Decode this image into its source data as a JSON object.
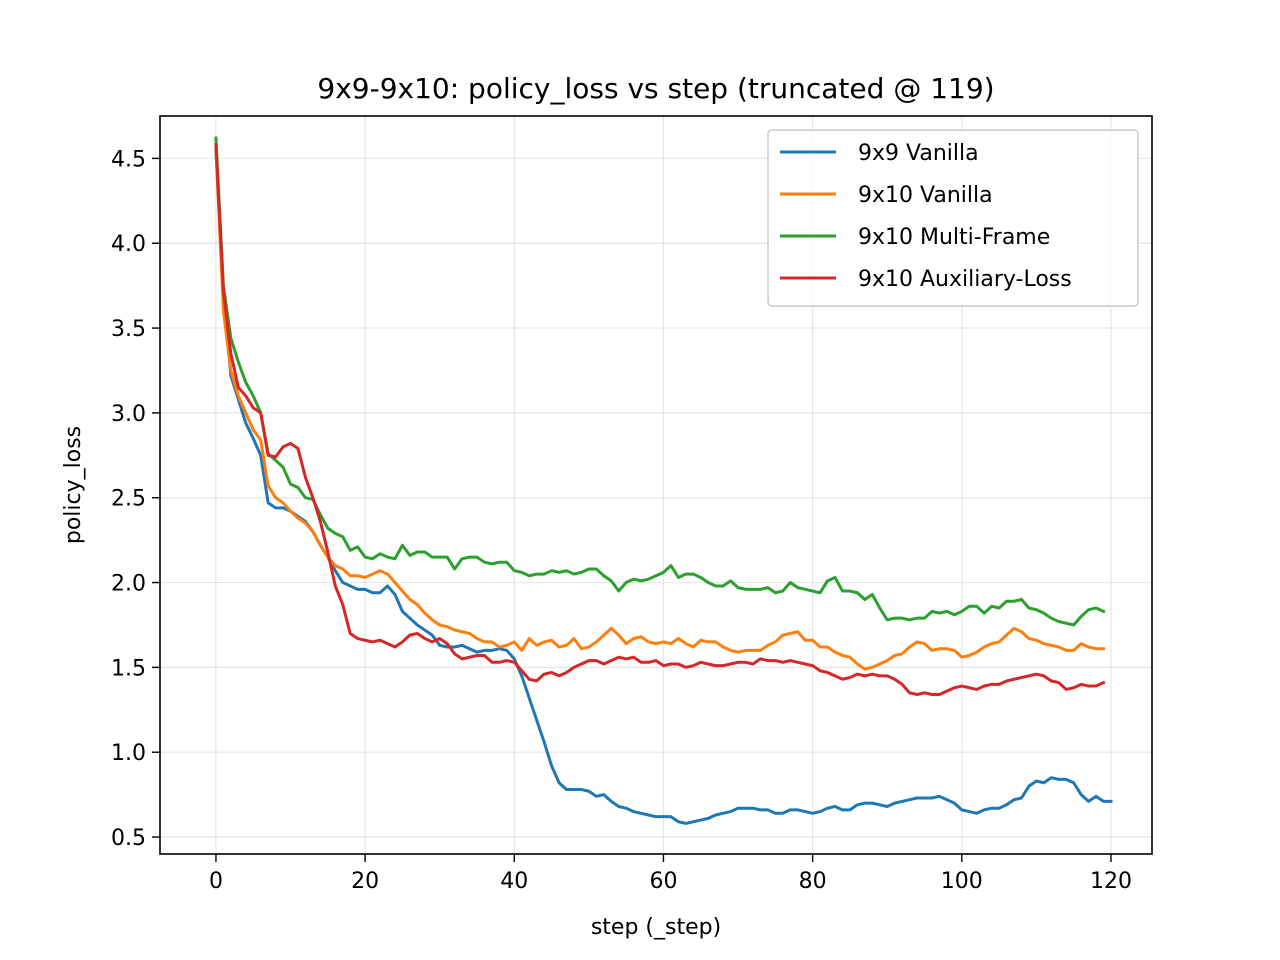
{
  "chart_data": {
    "type": "line",
    "title": "9x9-9x10: policy_loss vs step (truncated @ 119)",
    "xlabel": "step (_step)",
    "ylabel": "policy_loss",
    "xlim": [
      -7.5,
      125.5
    ],
    "ylim": [
      0.4,
      4.75
    ],
    "xticks": [
      0,
      20,
      40,
      60,
      80,
      100,
      120
    ],
    "yticks": [
      0.5,
      1.0,
      1.5,
      2.0,
      2.5,
      3.0,
      3.5,
      4.0,
      4.5
    ],
    "ytick_labels": [
      "0.5",
      "1.0",
      "1.5",
      "2.0",
      "2.5",
      "3.0",
      "3.5",
      "4.0",
      "4.5"
    ],
    "grid": true,
    "legend_position": "top-right",
    "series": [
      {
        "name": "9x9 Vanilla",
        "color": "#1f77b4",
        "values": [
          4.55,
          3.7,
          3.22,
          3.08,
          2.94,
          2.85,
          2.75,
          2.47,
          2.44,
          2.44,
          2.42,
          2.39,
          2.36,
          2.3,
          2.22,
          2.15,
          2.07,
          2.0,
          1.98,
          1.96,
          1.96,
          1.94,
          1.94,
          1.98,
          1.93,
          1.83,
          1.79,
          1.75,
          1.72,
          1.69,
          1.63,
          1.62,
          1.62,
          1.63,
          1.61,
          1.59,
          1.6,
          1.6,
          1.61,
          1.6,
          1.55,
          1.45,
          1.32,
          1.19,
          1.06,
          0.92,
          0.82,
          0.78,
          0.78,
          0.78,
          0.77,
          0.74,
          0.75,
          0.71,
          0.68,
          0.67,
          0.65,
          0.64,
          0.63,
          0.62,
          0.62,
          0.62,
          0.59,
          0.58,
          0.59,
          0.6,
          0.61,
          0.63,
          0.64,
          0.65,
          0.67,
          0.67,
          0.67,
          0.66,
          0.66,
          0.64,
          0.64,
          0.66,
          0.66,
          0.65,
          0.64,
          0.65,
          0.67,
          0.68,
          0.66,
          0.66,
          0.69,
          0.7,
          0.7,
          0.69,
          0.68,
          0.7,
          0.71,
          0.72,
          0.73,
          0.73,
          0.73,
          0.74,
          0.72,
          0.7,
          0.66,
          0.65,
          0.64,
          0.66,
          0.67,
          0.67,
          0.69,
          0.72,
          0.73,
          0.8,
          0.83,
          0.82,
          0.85,
          0.84,
          0.84,
          0.82,
          0.75,
          0.71,
          0.74,
          0.71,
          0.71
        ]
      },
      {
        "name": "9x10 Vanilla",
        "color": "#ff7f0e",
        "values": [
          4.56,
          3.6,
          3.25,
          3.1,
          3.0,
          2.9,
          2.84,
          2.57,
          2.5,
          2.47,
          2.42,
          2.38,
          2.35,
          2.3,
          2.22,
          2.15,
          2.1,
          2.08,
          2.04,
          2.04,
          2.03,
          2.05,
          2.07,
          2.05,
          2.0,
          1.95,
          1.9,
          1.87,
          1.82,
          1.78,
          1.75,
          1.74,
          1.72,
          1.71,
          1.7,
          1.67,
          1.65,
          1.65,
          1.62,
          1.63,
          1.65,
          1.6,
          1.67,
          1.63,
          1.65,
          1.66,
          1.62,
          1.63,
          1.67,
          1.61,
          1.62,
          1.65,
          1.69,
          1.73,
          1.69,
          1.64,
          1.67,
          1.68,
          1.65,
          1.64,
          1.65,
          1.64,
          1.67,
          1.64,
          1.62,
          1.66,
          1.65,
          1.65,
          1.62,
          1.6,
          1.59,
          1.6,
          1.6,
          1.6,
          1.63,
          1.65,
          1.69,
          1.7,
          1.71,
          1.66,
          1.66,
          1.62,
          1.62,
          1.59,
          1.57,
          1.56,
          1.52,
          1.49,
          1.5,
          1.52,
          1.54,
          1.57,
          1.58,
          1.62,
          1.65,
          1.64,
          1.6,
          1.61,
          1.61,
          1.6,
          1.56,
          1.57,
          1.59,
          1.62,
          1.64,
          1.65,
          1.69,
          1.73,
          1.71,
          1.67,
          1.66,
          1.64,
          1.63,
          1.62,
          1.6,
          1.6,
          1.64,
          1.62,
          1.61,
          1.61
        ]
      },
      {
        "name": "9x10 Multi-Frame",
        "color": "#2ca02c",
        "values": [
          4.62,
          3.75,
          3.44,
          3.3,
          3.18,
          3.1,
          3.0,
          2.76,
          2.72,
          2.68,
          2.58,
          2.56,
          2.5,
          2.49,
          2.4,
          2.32,
          2.29,
          2.27,
          2.19,
          2.21,
          2.15,
          2.14,
          2.17,
          2.15,
          2.14,
          2.22,
          2.16,
          2.18,
          2.18,
          2.15,
          2.15,
          2.15,
          2.08,
          2.14,
          2.15,
          2.15,
          2.12,
          2.11,
          2.12,
          2.12,
          2.07,
          2.06,
          2.04,
          2.05,
          2.05,
          2.07,
          2.06,
          2.07,
          2.05,
          2.06,
          2.08,
          2.08,
          2.04,
          2.01,
          1.95,
          2.0,
          2.02,
          2.01,
          2.02,
          2.04,
          2.06,
          2.1,
          2.03,
          2.05,
          2.05,
          2.03,
          2.0,
          1.98,
          1.98,
          2.01,
          1.97,
          1.96,
          1.96,
          1.96,
          1.97,
          1.94,
          1.95,
          2.0,
          1.97,
          1.96,
          1.95,
          1.94,
          2.01,
          2.03,
          1.95,
          1.95,
          1.94,
          1.9,
          1.93,
          1.85,
          1.78,
          1.79,
          1.79,
          1.78,
          1.79,
          1.79,
          1.83,
          1.82,
          1.83,
          1.81,
          1.83,
          1.86,
          1.86,
          1.82,
          1.86,
          1.85,
          1.89,
          1.89,
          1.9,
          1.85,
          1.84,
          1.82,
          1.79,
          1.77,
          1.76,
          1.75,
          1.8,
          1.84,
          1.85,
          1.83
        ]
      },
      {
        "name": "9x10 Auxiliary-Loss",
        "color": "#d62728",
        "values": [
          4.58,
          3.72,
          3.35,
          3.15,
          3.1,
          3.03,
          3.0,
          2.75,
          2.74,
          2.8,
          2.82,
          2.79,
          2.62,
          2.5,
          2.36,
          2.18,
          1.98,
          1.87,
          1.7,
          1.67,
          1.66,
          1.65,
          1.66,
          1.64,
          1.62,
          1.65,
          1.69,
          1.7,
          1.67,
          1.65,
          1.67,
          1.64,
          1.58,
          1.55,
          1.56,
          1.57,
          1.57,
          1.53,
          1.53,
          1.54,
          1.53,
          1.48,
          1.43,
          1.42,
          1.46,
          1.47,
          1.45,
          1.47,
          1.5,
          1.52,
          1.54,
          1.54,
          1.52,
          1.54,
          1.56,
          1.55,
          1.56,
          1.53,
          1.53,
          1.54,
          1.51,
          1.52,
          1.52,
          1.5,
          1.51,
          1.53,
          1.52,
          1.51,
          1.51,
          1.52,
          1.53,
          1.53,
          1.52,
          1.55,
          1.54,
          1.54,
          1.53,
          1.54,
          1.53,
          1.52,
          1.51,
          1.48,
          1.47,
          1.45,
          1.43,
          1.44,
          1.46,
          1.45,
          1.46,
          1.45,
          1.45,
          1.43,
          1.4,
          1.35,
          1.34,
          1.35,
          1.34,
          1.34,
          1.36,
          1.38,
          1.39,
          1.38,
          1.37,
          1.39,
          1.4,
          1.4,
          1.42,
          1.43,
          1.44,
          1.45,
          1.46,
          1.45,
          1.42,
          1.41,
          1.37,
          1.38,
          1.4,
          1.39,
          1.39,
          1.41
        ]
      }
    ]
  }
}
